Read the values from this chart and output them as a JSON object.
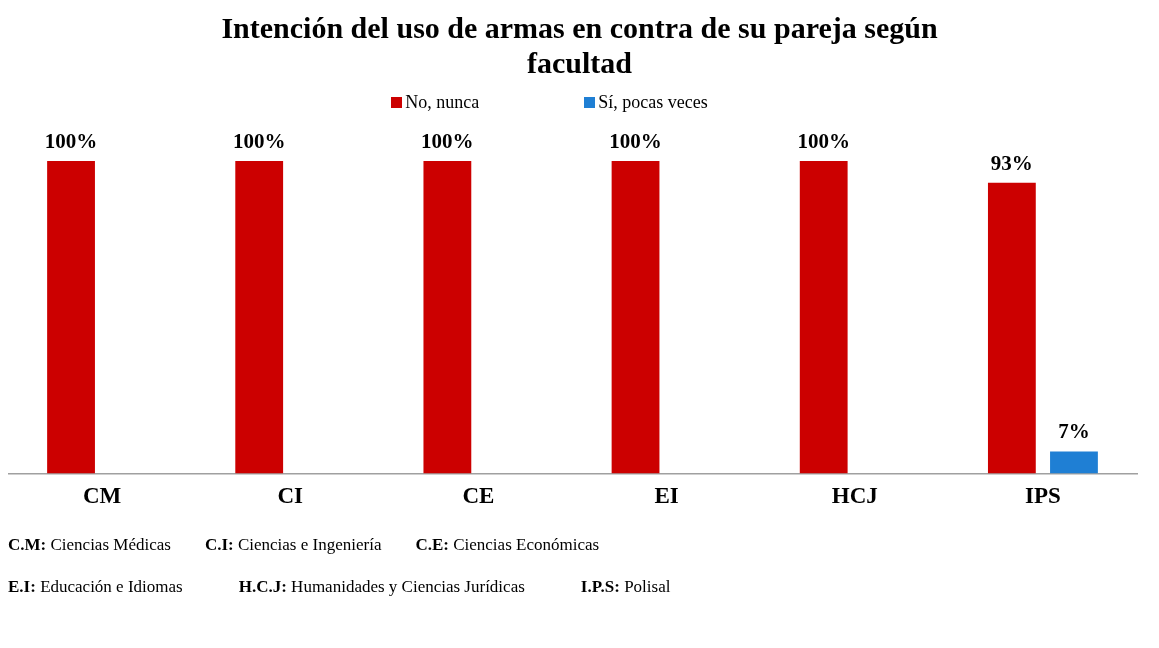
{
  "chart_data": {
    "type": "bar",
    "title": "Intención del uso de armas en contra de su pareja según facultad",
    "categories": [
      "CM",
      "CI",
      "CE",
      "EI",
      "HCJ",
      "IPS"
    ],
    "series": [
      {
        "name": "No, nunca",
        "color": "#cc0000",
        "values": [
          100,
          100,
          100,
          100,
          100,
          93
        ],
        "value_labels": [
          "100%",
          "100%",
          "100%",
          "100%",
          "100%",
          "93%"
        ]
      },
      {
        "name": "Sí, pocas veces",
        "color": "#1f7fd4",
        "values": [
          null,
          null,
          null,
          null,
          null,
          7
        ],
        "value_labels": [
          null,
          null,
          null,
          null,
          null,
          "7%"
        ]
      }
    ],
    "legend": "top",
    "grid": false,
    "annotations": [
      "C.M: Ciencias Médicas",
      "C.I: Ciencias e Ingeniería",
      "C.E: Ciencias Económicas",
      "E.I: Educación e Idiomas",
      "H.C.J: Humanidades y Ciencias Jurídicas",
      "I.P.S: Polisal"
    ]
  }
}
